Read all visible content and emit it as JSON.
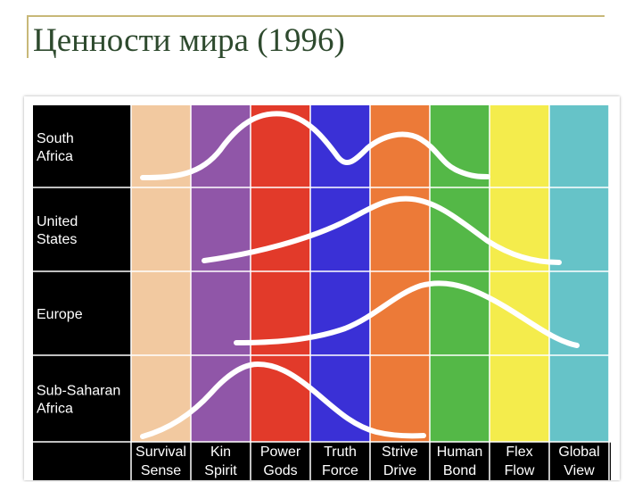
{
  "title": "Ценности мира (1996)",
  "rows": [
    {
      "lines": [
        "South",
        "Africa"
      ]
    },
    {
      "lines": [
        "United",
        "States"
      ]
    },
    {
      "lines": [
        "Europe"
      ]
    },
    {
      "lines": [
        "Sub-Saharan",
        "Africa"
      ]
    }
  ],
  "columns": [
    {
      "lines": [
        "Survival",
        "Sense"
      ],
      "color": "#f2c9a0"
    },
    {
      "lines": [
        "Kin",
        "Spirit"
      ],
      "color": "#9056a8"
    },
    {
      "lines": [
        "Power",
        "Gods"
      ],
      "color": "#e23a2a"
    },
    {
      "lines": [
        "Truth",
        "Force"
      ],
      "color": "#3a30d6"
    },
    {
      "lines": [
        "Strive",
        "Drive"
      ],
      "color": "#ec7a38"
    },
    {
      "lines": [
        "Human",
        "Bond"
      ],
      "color": "#54b847"
    },
    {
      "lines": [
        "Flex",
        "Flow"
      ],
      "color": "#f4ec4c"
    },
    {
      "lines": [
        "Global",
        "View"
      ],
      "color": "#66c3c8"
    }
  ],
  "colors": {
    "label_background": "#000000",
    "curve": "#ffffff",
    "divider": "#ffffff"
  }
}
